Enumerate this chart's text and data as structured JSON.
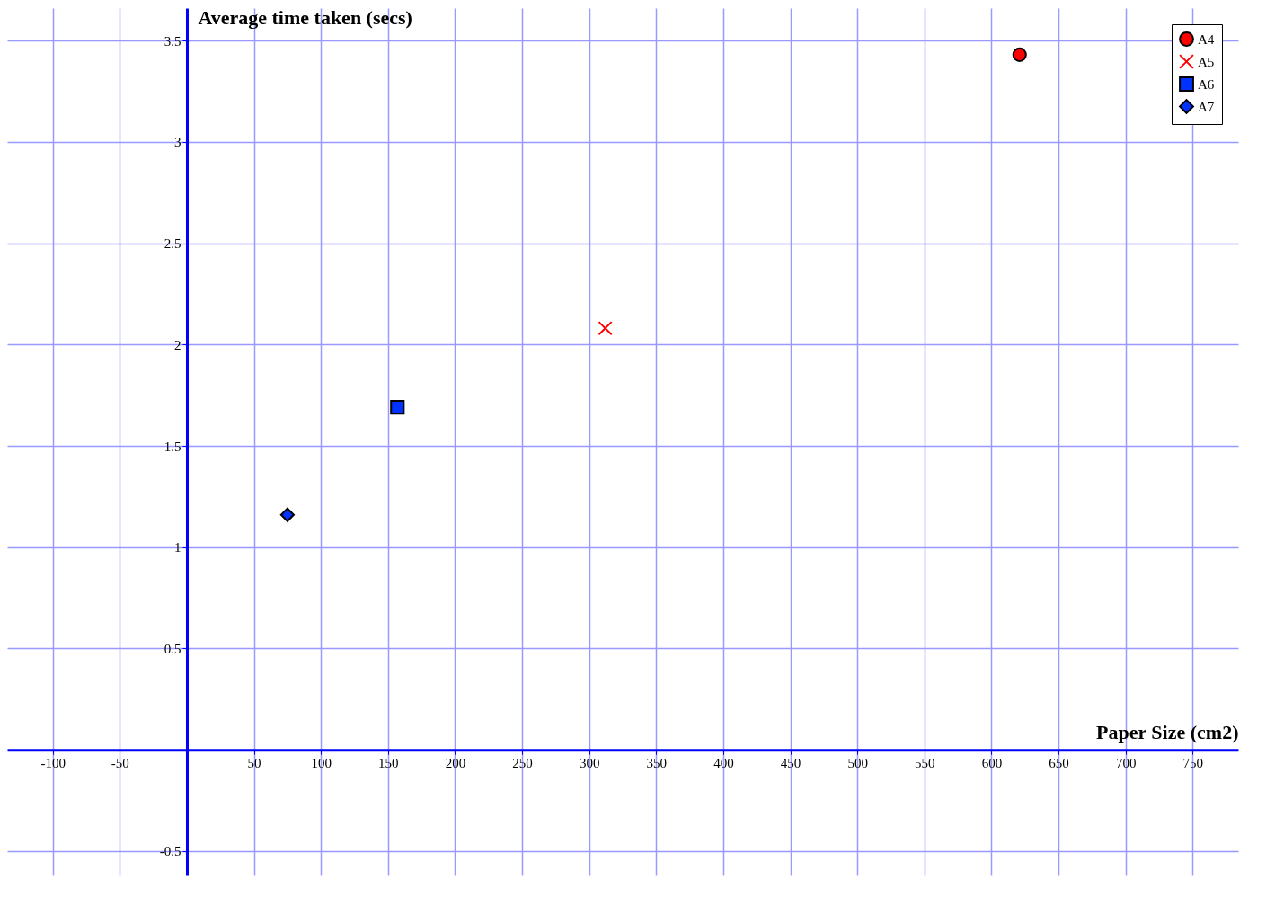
{
  "chart_data": {
    "type": "scatter",
    "xlabel": "Paper Size (cm2)",
    "ylabel": "Average time taken (secs)",
    "series": [
      {
        "name": "A4",
        "color": "#ff0000",
        "marker": "circle",
        "x": [
          621
        ],
        "values": [
          3.43
        ]
      },
      {
        "name": "A5",
        "color": "#ff0000",
        "marker": "cross",
        "x": [
          312
        ],
        "values": [
          2.08
        ]
      },
      {
        "name": "A6",
        "color": "#0033ff",
        "marker": "square",
        "x": [
          157
        ],
        "values": [
          1.69
        ]
      },
      {
        "name": "A7",
        "color": "#0033ff",
        "marker": "diamond",
        "x": [
          75
        ],
        "values": [
          1.16
        ]
      }
    ],
    "xlim": [
      -134,
      784
    ],
    "ylim": [
      -0.62,
      3.66
    ],
    "xticks": [
      -100,
      -50,
      50,
      100,
      150,
      200,
      250,
      300,
      350,
      400,
      450,
      500,
      550,
      600,
      650,
      700,
      750
    ],
    "yticks": [
      -0.5,
      0.5,
      1,
      1.5,
      2,
      2.5,
      3,
      3.5
    ],
    "grid": true,
    "legend": "top right"
  }
}
